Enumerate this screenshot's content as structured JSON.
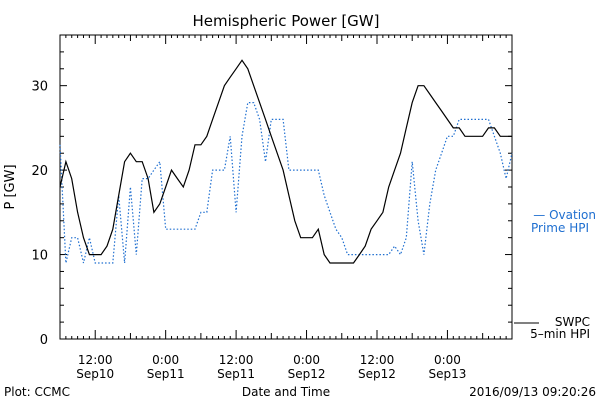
{
  "chart_data": {
    "type": "line",
    "title": "Hemispheric Power [GW]",
    "xlabel": "Date and Time",
    "ylabel": "P [GW]",
    "ylim": [
      0,
      36
    ],
    "xlim": [
      "2016-09-10T06:00",
      "2016-09-13T11:00"
    ],
    "yticks": [
      0,
      10,
      20,
      30
    ],
    "xticks": [
      {
        "t": "2016-09-10T12:00",
        "line1": "12:00",
        "line2": "Sep10"
      },
      {
        "t": "2016-09-11T00:00",
        "line1": "0:00",
        "line2": "Sep11"
      },
      {
        "t": "2016-09-11T12:00",
        "line1": "12:00",
        "line2": "Sep11"
      },
      {
        "t": "2016-09-12T00:00",
        "line1": "0:00",
        "line2": "Sep12"
      },
      {
        "t": "2016-09-12T12:00",
        "line1": "12:00",
        "line2": "Sep12"
      },
      {
        "t": "2016-09-13T00:00",
        "line1": "0:00",
        "line2": "Sep13"
      }
    ],
    "grid": false,
    "series": [
      {
        "name": "SWPC 5-min HPI",
        "color": "#000000",
        "style": "solid",
        "x": [
          "2016-09-10T06:00",
          "2016-09-10T07:00",
          "2016-09-10T08:00",
          "2016-09-10T09:00",
          "2016-09-10T10:00",
          "2016-09-10T11:00",
          "2016-09-10T12:00",
          "2016-09-10T13:00",
          "2016-09-10T14:00",
          "2016-09-10T15:00",
          "2016-09-10T16:00",
          "2016-09-10T17:00",
          "2016-09-10T18:00",
          "2016-09-10T19:00",
          "2016-09-10T20:00",
          "2016-09-10T21:00",
          "2016-09-10T22:00",
          "2016-09-10T23:00",
          "2016-09-11T00:00",
          "2016-09-11T01:00",
          "2016-09-11T02:00",
          "2016-09-11T03:00",
          "2016-09-11T04:00",
          "2016-09-11T05:00",
          "2016-09-11T06:00",
          "2016-09-11T07:00",
          "2016-09-11T08:00",
          "2016-09-11T09:00",
          "2016-09-11T10:00",
          "2016-09-11T11:00",
          "2016-09-11T12:00",
          "2016-09-11T13:00",
          "2016-09-11T14:00",
          "2016-09-11T15:00",
          "2016-09-11T16:00",
          "2016-09-11T17:00",
          "2016-09-11T18:00",
          "2016-09-11T19:00",
          "2016-09-11T20:00",
          "2016-09-11T21:00",
          "2016-09-11T22:00",
          "2016-09-11T23:00",
          "2016-09-12T00:00",
          "2016-09-12T01:00",
          "2016-09-12T02:00",
          "2016-09-12T03:00",
          "2016-09-12T04:00",
          "2016-09-12T05:00",
          "2016-09-12T06:00",
          "2016-09-12T07:00",
          "2016-09-12T08:00",
          "2016-09-12T09:00",
          "2016-09-12T10:00",
          "2016-09-12T11:00",
          "2016-09-12T12:00",
          "2016-09-12T13:00",
          "2016-09-12T14:00",
          "2016-09-12T15:00",
          "2016-09-12T16:00",
          "2016-09-12T17:00",
          "2016-09-12T18:00",
          "2016-09-12T19:00",
          "2016-09-12T20:00",
          "2016-09-12T21:00",
          "2016-09-12T22:00",
          "2016-09-12T23:00",
          "2016-09-13T00:00",
          "2016-09-13T01:00",
          "2016-09-13T02:00",
          "2016-09-13T03:00",
          "2016-09-13T04:00",
          "2016-09-13T05:00",
          "2016-09-13T06:00",
          "2016-09-13T07:00",
          "2016-09-13T08:00",
          "2016-09-13T09:00",
          "2016-09-13T10:00",
          "2016-09-13T11:00"
        ],
        "values": [
          18,
          21,
          19,
          15,
          12,
          10,
          10,
          10,
          11,
          13,
          17,
          21,
          22,
          21,
          21,
          19,
          15,
          16,
          18,
          20,
          19,
          18,
          20,
          23,
          23,
          24,
          26,
          28,
          30,
          31,
          32,
          33,
          32,
          30,
          28,
          26,
          24,
          22,
          20,
          17,
          14,
          12,
          12,
          12,
          13,
          10,
          9,
          9,
          9,
          9,
          9,
          10,
          11,
          13,
          14,
          15,
          18,
          20,
          22,
          25,
          28,
          30,
          30,
          29,
          28,
          27,
          26,
          25,
          25,
          24,
          24,
          24,
          24,
          25,
          25,
          24,
          24,
          24
        ]
      },
      {
        "name": "Ovation Prime HPI",
        "color": "#1f6fd0",
        "style": "dotted",
        "x": [
          "2016-09-10T06:00",
          "2016-09-10T07:00",
          "2016-09-10T08:00",
          "2016-09-10T09:00",
          "2016-09-10T10:00",
          "2016-09-10T11:00",
          "2016-09-10T12:00",
          "2016-09-10T13:00",
          "2016-09-10T14:00",
          "2016-09-10T15:00",
          "2016-09-10T16:00",
          "2016-09-10T17:00",
          "2016-09-10T18:00",
          "2016-09-10T19:00",
          "2016-09-10T20:00",
          "2016-09-10T21:00",
          "2016-09-10T22:00",
          "2016-09-10T23:00",
          "2016-09-11T00:00",
          "2016-09-11T01:00",
          "2016-09-11T02:00",
          "2016-09-11T03:00",
          "2016-09-11T04:00",
          "2016-09-11T05:00",
          "2016-09-11T06:00",
          "2016-09-11T07:00",
          "2016-09-11T08:00",
          "2016-09-11T09:00",
          "2016-09-11T10:00",
          "2016-09-11T11:00",
          "2016-09-11T12:00",
          "2016-09-11T13:00",
          "2016-09-11T14:00",
          "2016-09-11T15:00",
          "2016-09-11T16:00",
          "2016-09-11T17:00",
          "2016-09-11T18:00",
          "2016-09-11T19:00",
          "2016-09-11T20:00",
          "2016-09-11T21:00",
          "2016-09-11T22:00",
          "2016-09-11T23:00",
          "2016-09-12T00:00",
          "2016-09-12T01:00",
          "2016-09-12T02:00",
          "2016-09-12T03:00",
          "2016-09-12T04:00",
          "2016-09-12T05:00",
          "2016-09-12T06:00",
          "2016-09-12T07:00",
          "2016-09-12T08:00",
          "2016-09-12T09:00",
          "2016-09-12T10:00",
          "2016-09-12T11:00",
          "2016-09-12T12:00",
          "2016-09-12T13:00",
          "2016-09-12T14:00",
          "2016-09-12T15:00",
          "2016-09-12T16:00",
          "2016-09-12T17:00",
          "2016-09-12T18:00",
          "2016-09-12T19:00",
          "2016-09-12T20:00",
          "2016-09-12T21:00",
          "2016-09-12T22:00",
          "2016-09-12T23:00",
          "2016-09-13T00:00",
          "2016-09-13T01:00",
          "2016-09-13T02:00",
          "2016-09-13T03:00",
          "2016-09-13T04:00",
          "2016-09-13T05:00",
          "2016-09-13T06:00",
          "2016-09-13T07:00",
          "2016-09-13T08:00",
          "2016-09-13T09:00",
          "2016-09-13T10:00",
          "2016-09-13T11:00"
        ],
        "values": [
          23,
          9,
          12,
          12,
          9,
          12,
          9,
          9,
          9,
          9,
          17,
          9,
          18,
          10,
          19,
          19,
          20,
          21,
          13,
          13,
          13,
          13,
          13,
          13,
          15,
          15,
          20,
          20,
          20,
          24,
          15,
          24,
          28,
          28,
          26,
          21,
          26,
          26,
          26,
          20,
          20,
          20,
          20,
          20,
          20,
          17,
          15,
          13,
          12,
          10,
          10,
          10,
          10,
          10,
          10,
          10,
          10,
          11,
          10,
          12,
          21,
          14,
          10,
          16,
          20,
          22,
          24,
          24,
          26,
          26,
          26,
          26,
          26,
          26,
          24,
          22,
          19,
          22
        ]
      }
    ]
  },
  "labels": {
    "title": "Hemispheric Power [GW]",
    "ylabel": "P [GW]",
    "xlabel": "Date and Time",
    "plot_source": "Plot: CCMC",
    "timestamp": "2016/09/13 09:20:26",
    "legend_ovation_line1": "— Ovation",
    "legend_ovation_line2": "Prime HPI",
    "legend_swpc_line1": "SWPC",
    "legend_swpc_line2": "5–min HPI"
  }
}
